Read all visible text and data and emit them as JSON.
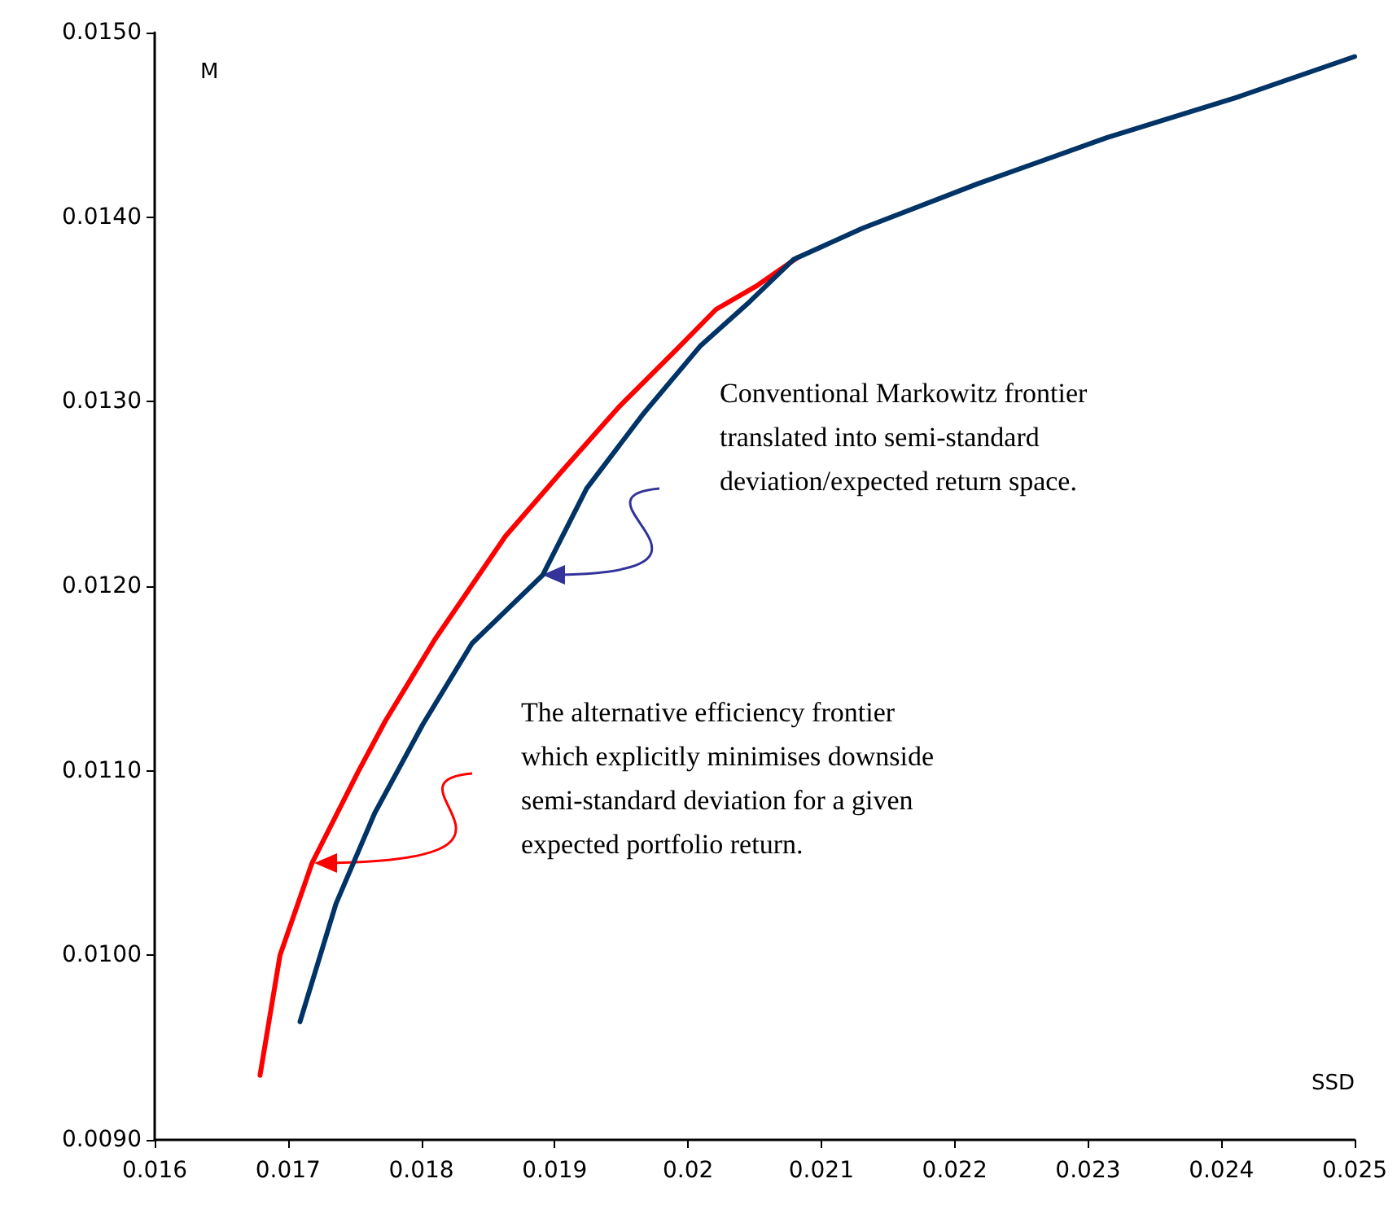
{
  "chart_data": {
    "type": "line",
    "xlabel": "SSD",
    "ylabel": "M",
    "xlim": [
      0.016,
      0.025
    ],
    "xticks": [
      0.016,
      0.017,
      0.018,
      0.019,
      0.02,
      0.021,
      0.022,
      0.023,
      0.024,
      0.025
    ],
    "ylim": [
      0.009,
      0.015
    ],
    "yticks": [
      {
        "value": 0.009,
        "label": "0.0090"
      },
      {
        "value": 0.01,
        "label": "0.0100"
      },
      {
        "value": 0.011,
        "label": "0.0110"
      },
      {
        "value": 0.012,
        "label": "0.0120"
      },
      {
        "value": 0.013,
        "label": "0.0130"
      },
      {
        "value": 0.014,
        "label": "0.0140"
      },
      {
        "value": 0.015,
        "label": "0.0150"
      }
    ],
    "grid": false,
    "marker": "none",
    "line_style": "solid",
    "series": [
      {
        "color": "#ff0000",
        "x": [
          0.01679,
          0.01694,
          0.01718,
          0.01753,
          0.01773,
          0.0181,
          0.01863,
          0.01905,
          0.01948,
          0.01991,
          0.02021,
          0.02052,
          0.02082
        ],
        "values": [
          0.00935,
          0.01,
          0.0105,
          0.011,
          0.01127,
          0.01171,
          0.01227,
          0.01262,
          0.01297,
          0.01328,
          0.0135,
          0.01363,
          0.01378
        ]
      },
      {
        "color": "#003366",
        "x": [
          0.01709,
          0.01736,
          0.01765,
          0.01801,
          0.01838,
          0.01891,
          0.01924,
          0.01966,
          0.02009,
          0.02046,
          0.02079,
          0.02131,
          0.02217,
          0.02314,
          0.02412,
          0.025
        ],
        "values": [
          0.00964,
          0.01028,
          0.01077,
          0.01125,
          0.01169,
          0.01206,
          0.01253,
          0.01293,
          0.0133,
          0.01354,
          0.01377,
          0.01394,
          0.01418,
          0.01443,
          0.01465,
          0.01487
        ]
      }
    ],
    "annotations": [
      "Conventional Markowitz frontier\ntranslated into semi-standard\ndeviation/expected return space.",
      "The alternative efficiency frontier\nwhich explicitly minimises downside\nsemi-standard deviation for a given\nexpected portfolio return."
    ]
  }
}
